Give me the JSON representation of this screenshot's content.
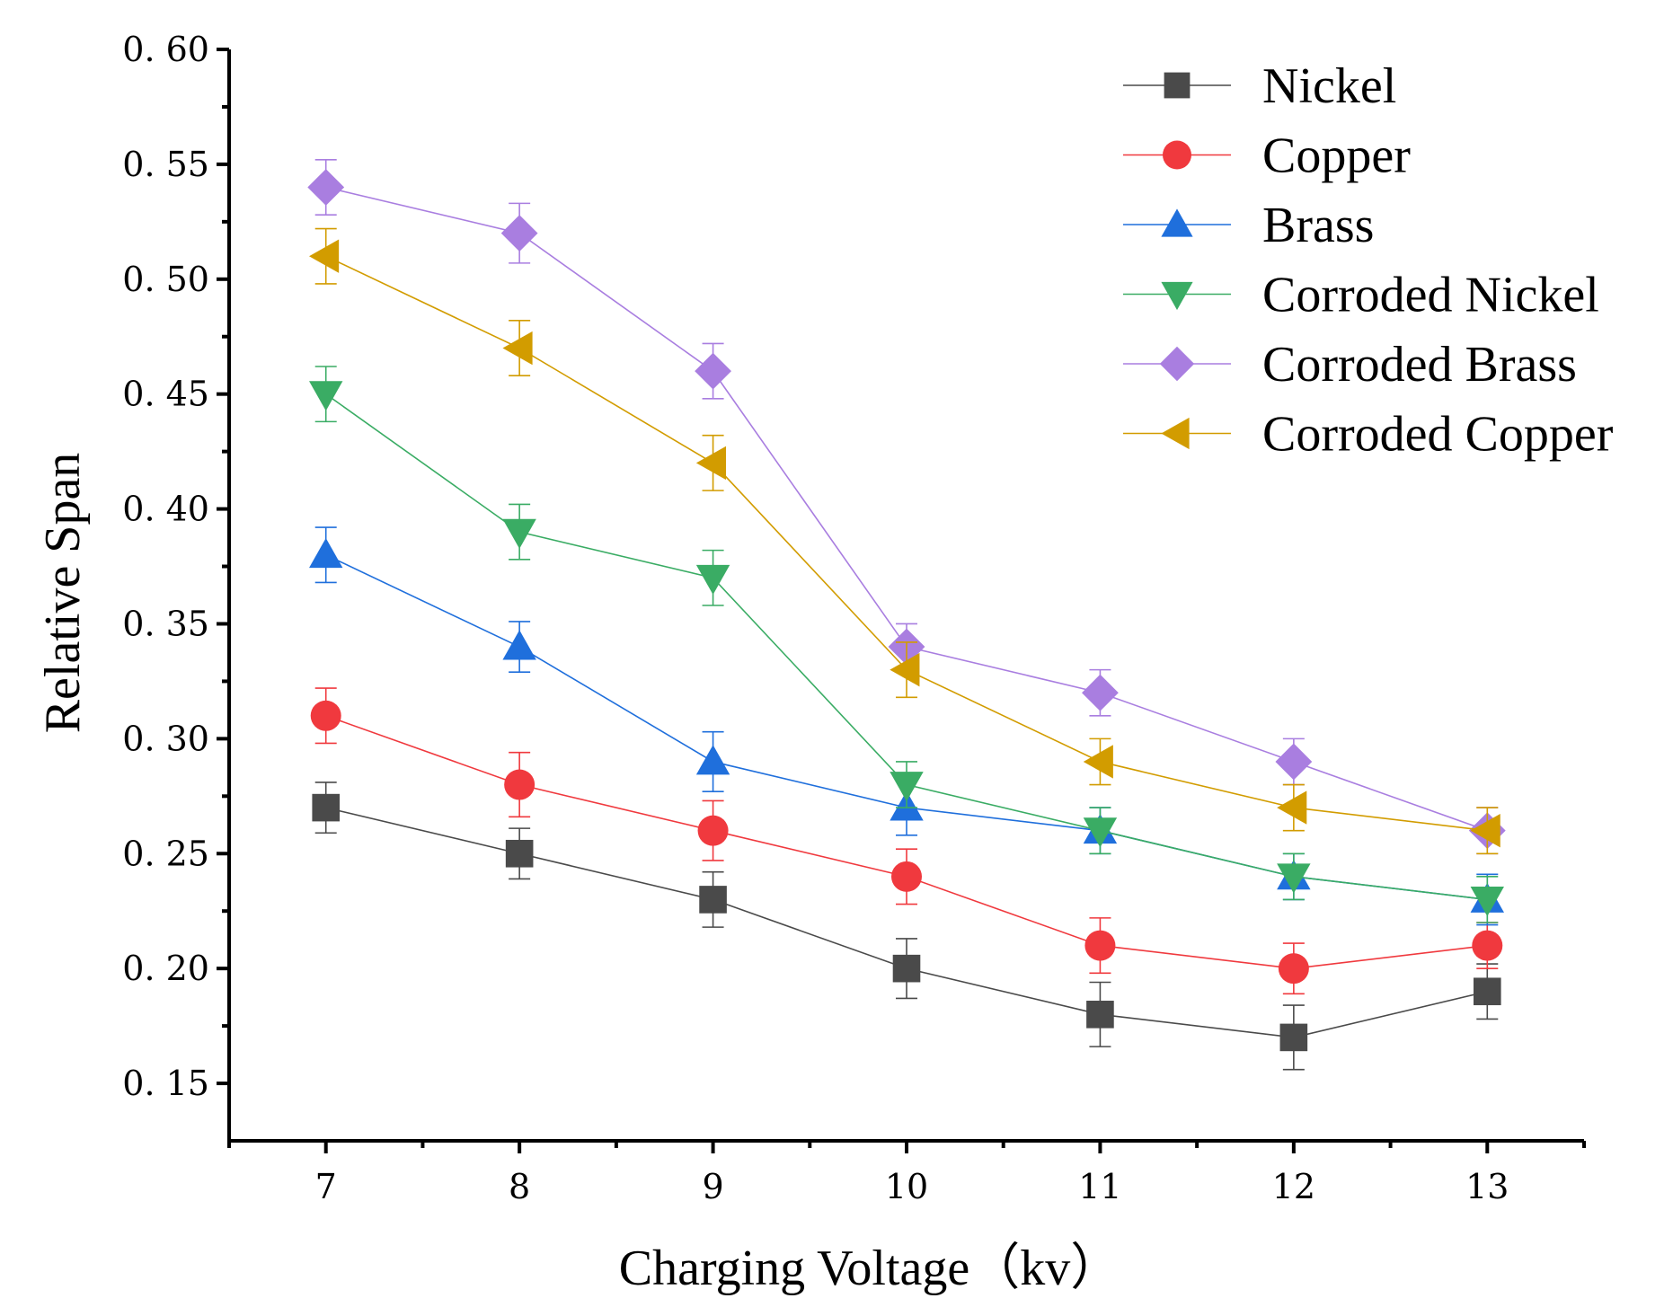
{
  "chart_data": {
    "type": "line",
    "title": "",
    "xlabel": "Charging Voltage（kv）",
    "ylabel": "Relative Span",
    "x": [
      7,
      8,
      9,
      10,
      11,
      12,
      13
    ],
    "x_tick_labels": [
      "7",
      "8",
      "9",
      "10",
      "11",
      "12",
      "13"
    ],
    "xlim": [
      6.5,
      13.5
    ],
    "ylim": [
      0.125,
      0.6
    ],
    "y_ticks": [
      0.15,
      0.2,
      0.25,
      0.3,
      0.35,
      0.4,
      0.45,
      0.5,
      0.55,
      0.6
    ],
    "y_tick_labels": [
      "0. 15",
      "0. 20",
      "0. 25",
      "0. 30",
      "0. 35",
      "0. 40",
      "0. 45",
      "0. 50",
      "0. 55",
      "0. 60"
    ],
    "grid": false,
    "legend_position": "top-right",
    "series": [
      {
        "name": "Nickel",
        "marker": "square",
        "color": "#4a4a4a",
        "values": [
          0.27,
          0.25,
          0.23,
          0.2,
          0.18,
          0.17,
          0.19
        ],
        "errors": [
          0.011,
          0.011,
          0.012,
          0.013,
          0.014,
          0.014,
          0.012
        ]
      },
      {
        "name": "Copper",
        "marker": "circle",
        "color": "#f0393e",
        "values": [
          0.31,
          0.28,
          0.26,
          0.24,
          0.21,
          0.2,
          0.21
        ],
        "errors": [
          0.012,
          0.014,
          0.013,
          0.012,
          0.012,
          0.011,
          0.01
        ]
      },
      {
        "name": "Brass",
        "marker": "triangle-up",
        "color": "#1f6fdc",
        "values": [
          0.38,
          0.34,
          0.29,
          0.27,
          0.26,
          0.24,
          0.23
        ],
        "errors": [
          0.012,
          0.011,
          0.013,
          0.012,
          0.01,
          0.01,
          0.011
        ]
      },
      {
        "name": "Corroded Nickel",
        "marker": "triangle-down",
        "color": "#3aac64",
        "values": [
          0.45,
          0.39,
          0.37,
          0.28,
          0.26,
          0.24,
          0.23
        ],
        "errors": [
          0.012,
          0.012,
          0.012,
          0.01,
          0.01,
          0.01,
          0.01
        ]
      },
      {
        "name": "Corroded Brass",
        "marker": "diamond",
        "color": "#a97ee0",
        "values": [
          0.54,
          0.52,
          0.46,
          0.34,
          0.32,
          0.29,
          0.26
        ],
        "errors": [
          0.012,
          0.013,
          0.012,
          0.01,
          0.01,
          0.01,
          0.01
        ]
      },
      {
        "name": "Corroded Copper",
        "marker": "triangle-left",
        "color": "#d29c00",
        "values": [
          0.51,
          0.47,
          0.42,
          0.33,
          0.29,
          0.27,
          0.26
        ],
        "errors": [
          0.012,
          0.012,
          0.012,
          0.012,
          0.01,
          0.01,
          0.01
        ]
      }
    ]
  }
}
